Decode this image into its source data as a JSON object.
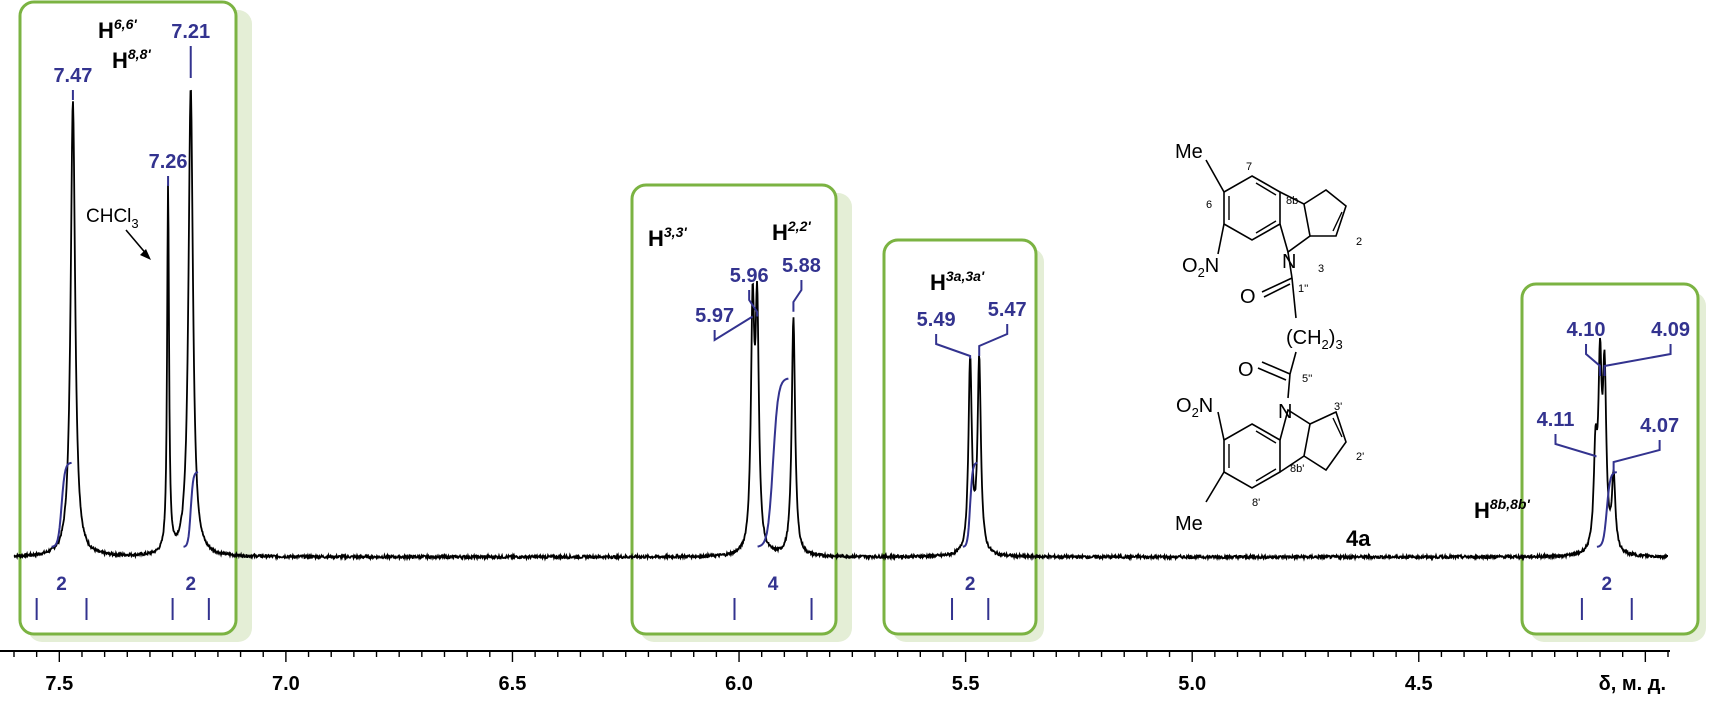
{
  "chart_data": {
    "type": "line",
    "title": "",
    "xlabel": "δ, м. д.",
    "xlim": [
      7.6,
      3.95
    ],
    "x_reversed": true,
    "x_ticks": [
      "7.5",
      "7.0",
      "6.5",
      "6.0",
      "5.5",
      "5.0",
      "4.5"
    ],
    "x_tick_values": [
      7.5,
      7.0,
      6.5,
      6.0,
      5.5,
      5.0,
      4.5
    ],
    "peaks": [
      {
        "ppm": 7.47,
        "label": "7.47",
        "height": 0.97
      },
      {
        "ppm": 7.26,
        "label": "7.26",
        "height": 0.78
      },
      {
        "ppm": 7.21,
        "label": "7.21",
        "height": 1.0
      },
      {
        "ppm": 5.97,
        "label": "5.97",
        "height": 0.5
      },
      {
        "ppm": 5.96,
        "label": "5.96",
        "height": 0.5
      },
      {
        "ppm": 5.88,
        "label": "5.88",
        "height": 0.51
      },
      {
        "ppm": 5.49,
        "label": "5.49",
        "height": 0.41
      },
      {
        "ppm": 5.47,
        "label": "5.47",
        "height": 0.41
      },
      {
        "ppm": 4.11,
        "label": "4.11",
        "height": 0.2
      },
      {
        "ppm": 4.1,
        "label": "4.10",
        "height": 0.37
      },
      {
        "ppm": 4.09,
        "label": "4.09",
        "height": 0.36
      },
      {
        "ppm": 4.07,
        "label": "4.07",
        "height": 0.16
      }
    ],
    "integrals": [
      {
        "from": 7.55,
        "to": 7.44,
        "value": "2"
      },
      {
        "from": 7.25,
        "to": 7.17,
        "value": "2"
      },
      {
        "from": 6.01,
        "to": 5.84,
        "value": "4"
      },
      {
        "from": 5.53,
        "to": 5.45,
        "value": "2"
      },
      {
        "from": 4.14,
        "to": 4.03,
        "value": "2"
      }
    ],
    "assignments": [
      {
        "base": "H",
        "sup": "6,6'"
      },
      {
        "base": "H",
        "sup": "8,8'"
      },
      {
        "base": "H",
        "sup": "3,3'"
      },
      {
        "base": "H",
        "sup": "2,2'"
      },
      {
        "base": "H",
        "sup": "3a,3a'"
      },
      {
        "base": "H",
        "sup": "8b,8b'"
      }
    ],
    "solvent_label": "CHCl",
    "solvent_sub": "3"
  },
  "structure": {
    "compound_label": "4a",
    "me_top": "Me",
    "me_bottom": "Me",
    "no2_top_o": "O",
    "no2_top_sub": "2",
    "no2_top_n": "N",
    "no2_bot_o": "O",
    "no2_bot_sub": "2",
    "no2_bot_n": "N",
    "n_top": "N",
    "n_bottom": "N",
    "o_top": "O",
    "o_bottom": "O",
    "chain": "(CH",
    "chain_sub": "2",
    "chain_close": ")",
    "chain_sub2": "3",
    "locants": {
      "l7": "7",
      "l6": "6",
      "l8b": "8b",
      "l2": "2",
      "l3": "3",
      "l1pp": "1''",
      "l5pp": "5''",
      "l3p": "3'",
      "l2p": "2'",
      "l8bp": "8b'",
      "l8p": "8'"
    }
  },
  "colors": {
    "box_border": "#7bb342",
    "box_shadow": "#e4eed6",
    "label": "#33338f",
    "spectrum": "#000000"
  }
}
